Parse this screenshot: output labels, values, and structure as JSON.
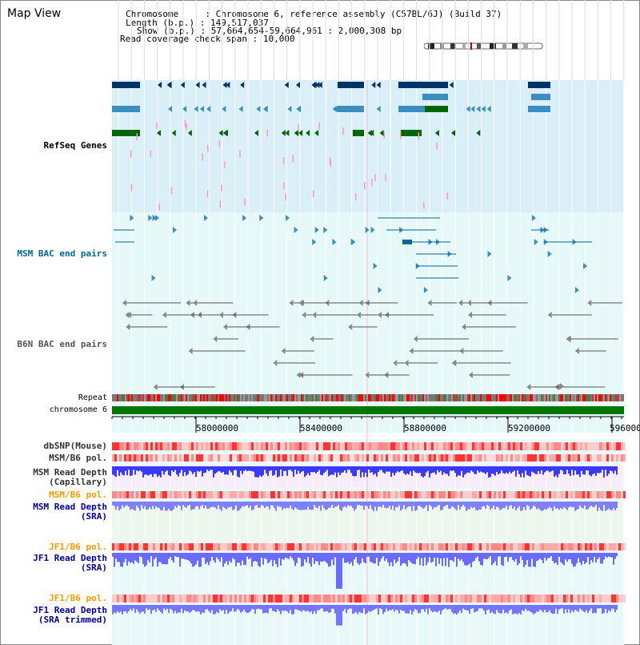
{
  "title": "Map View",
  "info": {
    "chromosome_label": "Chromosome",
    "chromosome_value": "Chromosome 6, reference assembly (C57BL/6J) (Build 37)",
    "length_label": "Length (b.p.)",
    "length_value": "149,517,037",
    "show_label": "Show (b.p.)",
    "show_value": "57,664,654-59,664,961 : 2,000,308 bp",
    "coverage_label": "Read coverage check span",
    "coverage_value": "10,000"
  },
  "tracks": {
    "refseq": "RefSeq Genes",
    "msm_bac": "MSM BAC end pairs",
    "b6n_bac": "B6N BAC end pairs",
    "repeat": "Repeat",
    "chromosome": "chromosome 6",
    "dbsnp": "dbSNP(Mouse)",
    "msm_b6_pol_1": "MSM/B6 pol.",
    "msm_depth_cap_1": "MSM Read Depth",
    "msm_depth_cap_2": "(Capillary)",
    "msm_b6_pol_2": "MSM/B6 pol.",
    "msm_depth_sra_1": "MSM Read Depth",
    "msm_depth_sra_2": "(SRA)",
    "jf1_b6_pol_1": "JF1/B6 pol.",
    "jf1_depth_sra_1": "JF1 Read Depth",
    "jf1_depth_sra_2": "(SRA)",
    "jf1_b6_pol_2": "JF1/B6 pol.",
    "jf1_depth_trim_1": "JF1 Read Depth",
    "jf1_depth_trim_2": "(SRA trimmed)"
  },
  "axis": {
    "ticks": [
      "58000000",
      "58400000",
      "58800000",
      "59200000",
      "596000"
    ]
  },
  "colors": {
    "refseq_label": "#0000aa",
    "msm_bac_label": "#006699",
    "b6n_bac_label": "#555555",
    "pol_label": "#ff9900",
    "depth_label": "#0000aa",
    "refseq_bg": "#dbeff9",
    "bac_bg": "#e6f8f8",
    "chromosome_bar": "#007700",
    "depth_blue": "#3333ff"
  }
}
